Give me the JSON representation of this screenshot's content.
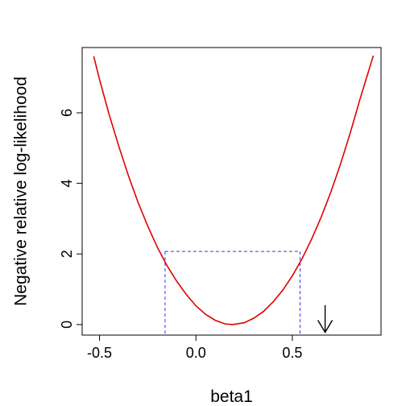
{
  "chart_data": {
    "type": "line",
    "xlabel": "beta1",
    "ylabel": "Negative relative log-likelihood",
    "xlim": [
      -0.59,
      0.96
    ],
    "ylim": [
      -0.3,
      7.85
    ],
    "x_ticks": [
      -0.5,
      0.0,
      0.5
    ],
    "x_tick_labels": [
      "-0.5",
      "0.0",
      "0.5"
    ],
    "y_ticks": [
      0,
      2,
      4,
      6
    ],
    "y_tick_labels": [
      "0",
      "2",
      "4",
      "6"
    ],
    "grid": false,
    "colors": {
      "curve": "#e00000",
      "interval": "#3333ff",
      "axes": "#000000"
    },
    "series": [
      {
        "x": [
          -0.53,
          -0.5,
          -0.45,
          -0.4,
          -0.35,
          -0.3,
          -0.25,
          -0.2,
          -0.15,
          -0.1,
          -0.05,
          0.0,
          0.05,
          0.1,
          0.15,
          0.19,
          0.25,
          0.3,
          0.35,
          0.4,
          0.45,
          0.5,
          0.55,
          0.6,
          0.65,
          0.7,
          0.75,
          0.8,
          0.85,
          0.92
        ],
        "y": [
          7.6,
          6.95,
          5.95,
          5.05,
          4.22,
          3.46,
          2.79,
          2.19,
          1.67,
          1.23,
          0.85,
          0.53,
          0.29,
          0.12,
          0.02,
          0.0,
          0.05,
          0.18,
          0.37,
          0.64,
          0.97,
          1.38,
          1.86,
          2.42,
          3.05,
          3.76,
          4.55,
          5.42,
          6.37,
          7.62
        ]
      }
    ],
    "interval": {
      "lower": -0.16,
      "upper": 0.54,
      "level": 2.07
    },
    "marker": {
      "type": "arrow-down",
      "x": 0.67,
      "y_from": 0.55,
      "y_to": -0.22
    }
  }
}
